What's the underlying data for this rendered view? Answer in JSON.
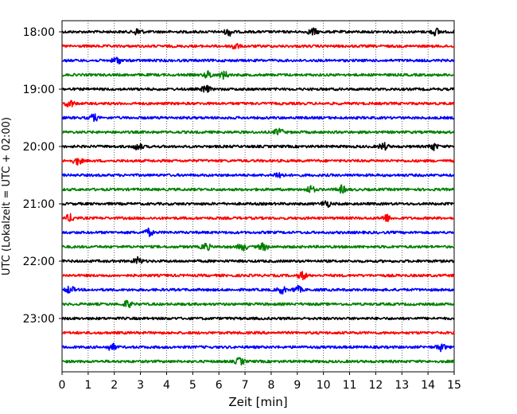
{
  "chart_data": {
    "type": "line",
    "title": "",
    "xlabel": "Zeit  [min]",
    "ylabel": "UTC (Lokalzeit = UTC + 02:00)",
    "xlim": [
      0,
      15
    ],
    "x_ticks": [
      "0",
      "1",
      "2",
      "3",
      "4",
      "5",
      "6",
      "7",
      "8",
      "9",
      "10",
      "11",
      "12",
      "13",
      "14",
      "15"
    ],
    "y_tick_labels": [
      "18:00",
      "19:00",
      "20:00",
      "21:00",
      "22:00",
      "23:00"
    ],
    "grid": "vertical-dotted",
    "trace_interval_minutes": 15,
    "trace_colors": [
      "#000000",
      "#ff0000",
      "#0000ff",
      "#008000"
    ],
    "traces": [
      {
        "start": "18:00",
        "color": "#000000",
        "events_min": [
          2.9,
          6.4,
          9.6,
          14.3
        ]
      },
      {
        "start": "18:15",
        "color": "#ff0000",
        "events_min": [
          6.6
        ]
      },
      {
        "start": "18:30",
        "color": "#0000ff",
        "events_min": [
          2.1
        ]
      },
      {
        "start": "18:45",
        "color": "#008000",
        "events_min": [
          5.6,
          6.2
        ]
      },
      {
        "start": "19:00",
        "color": "#000000",
        "events_min": [
          5.5
        ]
      },
      {
        "start": "19:15",
        "color": "#ff0000",
        "events_min": [
          0.3
        ]
      },
      {
        "start": "19:30",
        "color": "#0000ff",
        "events_min": [
          1.2
        ]
      },
      {
        "start": "19:45",
        "color": "#008000",
        "events_min": [
          8.3
        ]
      },
      {
        "start": "20:00",
        "color": "#000000",
        "events_min": [
          2.9,
          12.3,
          14.2
        ]
      },
      {
        "start": "20:15",
        "color": "#ff0000",
        "events_min": [
          0.6
        ]
      },
      {
        "start": "20:30",
        "color": "#0000ff",
        "events_min": [
          8.3
        ]
      },
      {
        "start": "20:45",
        "color": "#008000",
        "events_min": [
          9.5,
          10.7
        ]
      },
      {
        "start": "21:00",
        "color": "#000000",
        "events_min": [
          10.1
        ]
      },
      {
        "start": "21:15",
        "color": "#ff0000",
        "events_min": [
          0.3,
          12.4
        ]
      },
      {
        "start": "21:30",
        "color": "#0000ff",
        "events_min": [
          3.3
        ]
      },
      {
        "start": "21:45",
        "color": "#008000",
        "events_min": [
          5.5,
          6.9,
          7.7
        ]
      },
      {
        "start": "22:00",
        "color": "#000000",
        "events_min": [
          2.9
        ]
      },
      {
        "start": "22:15",
        "color": "#ff0000",
        "events_min": [
          9.2
        ]
      },
      {
        "start": "22:30",
        "color": "#0000ff",
        "events_min": [
          0.3,
          8.4,
          9.0
        ]
      },
      {
        "start": "22:45",
        "color": "#008000",
        "events_min": [
          2.5
        ]
      },
      {
        "start": "23:00",
        "color": "#000000",
        "events_min": []
      },
      {
        "start": "23:15",
        "color": "#ff0000",
        "events_min": []
      },
      {
        "start": "23:30",
        "color": "#0000ff",
        "events_min": [
          1.9,
          14.5
        ]
      },
      {
        "start": "23:45",
        "color": "#008000",
        "events_min": [
          6.8
        ]
      }
    ]
  }
}
